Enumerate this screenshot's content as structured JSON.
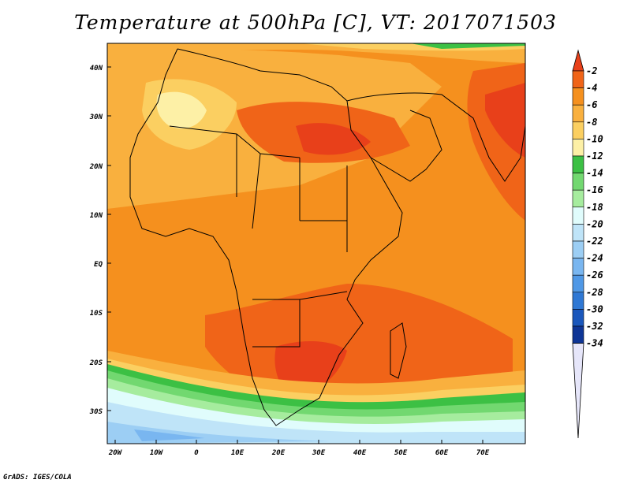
{
  "title": "Temperature at 500hPa [C], VT: 2017071503",
  "footer": "GrADS: IGES/COLA",
  "map": {
    "variable": "Temperature",
    "level": "500hPa",
    "unit": "C",
    "valid_time": "2017071503",
    "lat_ticks": [
      "40N",
      "30N",
      "20N",
      "10N",
      "EQ",
      "10S",
      "20S",
      "30S"
    ],
    "lon_ticks": [
      "20W",
      "10W",
      "0",
      "10E",
      "20E",
      "30E",
      "40E",
      "50E",
      "60E",
      "70E"
    ]
  },
  "colorbar": {
    "labels": [
      "-2",
      "-4",
      "-6",
      "-8",
      "-10",
      "-12",
      "-14",
      "-16",
      "-18",
      "-20",
      "-22",
      "-24",
      "-26",
      "-28",
      "-30",
      "-32",
      "-34"
    ],
    "colors": [
      "#e8401a",
      "#f06418",
      "#f5901e",
      "#f9b03e",
      "#fbcf61",
      "#fdf0a6",
      "#3cc044",
      "#72d870",
      "#a6ec9e",
      "#e0fcfc",
      "#bfe4f8",
      "#9ccef4",
      "#79b6f0",
      "#4f98e6",
      "#2f78d4",
      "#1a57bc",
      "#0e3596",
      "#101a78"
    ]
  }
}
